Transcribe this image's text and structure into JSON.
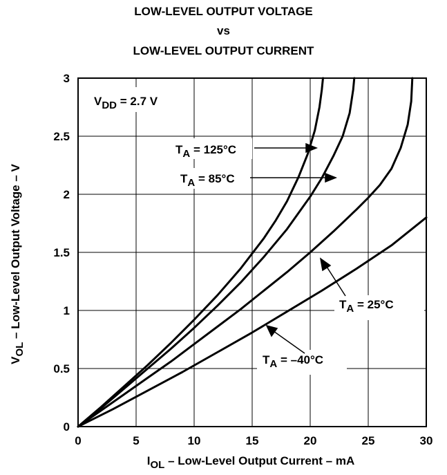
{
  "chart_data": {
    "type": "line",
    "title_lines": [
      "LOW-LEVEL OUTPUT VOLTAGE",
      "vs",
      "LOW-LEVEL OUTPUT CURRENT"
    ],
    "xlabel": {
      "main": "I",
      "sub": "OL",
      "rest": " – Low-Level Output Current – mA"
    },
    "ylabel": {
      "main": "V",
      "sub": "OL",
      "rest": " – Low-Level Output Voltage – V"
    },
    "xlim": [
      0,
      30
    ],
    "ylim": [
      0,
      3
    ],
    "x_ticks": [
      0,
      5,
      10,
      15,
      20,
      25,
      30
    ],
    "y_ticks": [
      0,
      0.5,
      1,
      1.5,
      2,
      2.5,
      3
    ],
    "x_tick_labels": [
      "0",
      "5",
      "10",
      "15",
      "20",
      "25",
      "30"
    ],
    "y_tick_labels": [
      "0",
      "0.5",
      "1",
      "1.5",
      "2",
      "2.5",
      "3"
    ],
    "grid": true,
    "condition": {
      "main": "V",
      "sub": "DD",
      "rest": " = 2.7 V"
    },
    "series": [
      {
        "name": "125°C",
        "label": {
          "main": "T",
          "sub": "A",
          "rest": " = 125°C"
        },
        "points": [
          [
            0,
            0
          ],
          [
            2,
            0.17
          ],
          [
            4,
            0.35
          ],
          [
            6,
            0.53
          ],
          [
            8,
            0.72
          ],
          [
            10,
            0.92
          ],
          [
            12,
            1.13
          ],
          [
            14,
            1.36
          ],
          [
            16,
            1.62
          ],
          [
            17,
            1.77
          ],
          [
            18,
            1.94
          ],
          [
            19,
            2.15
          ],
          [
            19.8,
            2.35
          ],
          [
            20.4,
            2.55
          ],
          [
            20.8,
            2.75
          ],
          [
            21.0,
            2.9
          ],
          [
            21.1,
            3.0
          ]
        ]
      },
      {
        "name": "85°C",
        "label": {
          "main": "T",
          "sub": "A",
          "rest": " = 85°C"
        },
        "points": [
          [
            0,
            0
          ],
          [
            2,
            0.16
          ],
          [
            4,
            0.33
          ],
          [
            6,
            0.5
          ],
          [
            8,
            0.67
          ],
          [
            10,
            0.85
          ],
          [
            12,
            1.04
          ],
          [
            14,
            1.24
          ],
          [
            16,
            1.46
          ],
          [
            18,
            1.7
          ],
          [
            19,
            1.84
          ],
          [
            20,
            1.98
          ],
          [
            21,
            2.14
          ],
          [
            22,
            2.33
          ],
          [
            22.8,
            2.5
          ],
          [
            23.4,
            2.7
          ],
          [
            23.7,
            2.9
          ],
          [
            23.8,
            3.0
          ]
        ]
      },
      {
        "name": "25°C",
        "label": {
          "main": "T",
          "sub": "A",
          "rest": " = 25°C"
        },
        "points": [
          [
            0,
            0
          ],
          [
            2,
            0.14
          ],
          [
            4,
            0.28
          ],
          [
            6,
            0.42
          ],
          [
            8,
            0.56
          ],
          [
            10,
            0.71
          ],
          [
            12,
            0.86
          ],
          [
            14,
            1.01
          ],
          [
            16,
            1.17
          ],
          [
            18,
            1.33
          ],
          [
            20,
            1.5
          ],
          [
            22,
            1.68
          ],
          [
            24,
            1.87
          ],
          [
            25,
            1.97
          ],
          [
            26,
            2.08
          ],
          [
            27,
            2.22
          ],
          [
            27.8,
            2.4
          ],
          [
            28.4,
            2.6
          ],
          [
            28.7,
            2.8
          ],
          [
            28.8,
            3.0
          ]
        ]
      },
      {
        "name": "-40°C",
        "label": {
          "main": "T",
          "sub": "A",
          "rest": " = –40°C"
        },
        "points": [
          [
            0,
            0
          ],
          [
            3,
            0.15
          ],
          [
            6,
            0.31
          ],
          [
            9,
            0.47
          ],
          [
            12,
            0.64
          ],
          [
            15,
            0.81
          ],
          [
            18,
            0.99
          ],
          [
            21,
            1.17
          ],
          [
            24,
            1.36
          ],
          [
            27,
            1.56
          ],
          [
            30,
            1.8
          ]
        ]
      }
    ]
  }
}
